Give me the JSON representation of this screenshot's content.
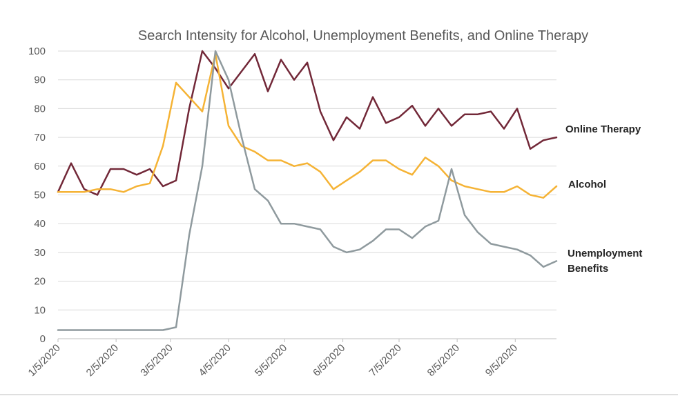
{
  "chart_data": {
    "type": "line",
    "title": "Search Intensity for Alcohol, Unemployment Benefits, and Online Therapy",
    "xlabel": "",
    "ylabel": "",
    "ylim": [
      0,
      100
    ],
    "yticks": [
      0,
      10,
      20,
      30,
      40,
      50,
      60,
      70,
      80,
      90,
      100
    ],
    "x_tick_labels": [
      "1/5/2020",
      "2/5/2020",
      "3/5/2020",
      "4/5/2020",
      "5/5/2020",
      "6/5/2020",
      "7/5/2020",
      "8/5/2020",
      "9/5/2020"
    ],
    "x": [
      "2020-01-05",
      "2020-01-12",
      "2020-01-19",
      "2020-01-26",
      "2020-02-02",
      "2020-02-09",
      "2020-02-16",
      "2020-02-23",
      "2020-03-01",
      "2020-03-08",
      "2020-03-15",
      "2020-03-22",
      "2020-03-29",
      "2020-04-05",
      "2020-04-12",
      "2020-04-19",
      "2020-04-26",
      "2020-05-03",
      "2020-05-10",
      "2020-05-17",
      "2020-05-24",
      "2020-05-31",
      "2020-06-07",
      "2020-06-14",
      "2020-06-21",
      "2020-06-28",
      "2020-07-05",
      "2020-07-12",
      "2020-07-19",
      "2020-07-26",
      "2020-08-02",
      "2020-08-09",
      "2020-08-16",
      "2020-08-23",
      "2020-08-30",
      "2020-09-06",
      "2020-09-13",
      "2020-09-20",
      "2020-09-27"
    ],
    "grid": true,
    "legend": "inline labels at right end of lines",
    "series": [
      {
        "name": "Online Therapy",
        "color": "#722838",
        "values": [
          51,
          61,
          52,
          50,
          59,
          59,
          57,
          59,
          53,
          55,
          80,
          100,
          94,
          87,
          93,
          99,
          86,
          97,
          90,
          96,
          79,
          69,
          77,
          73,
          84,
          75,
          77,
          81,
          74,
          80,
          74,
          78,
          78,
          79,
          73,
          80,
          66,
          69,
          70
        ]
      },
      {
        "name": "Alcohol",
        "color": "#f5b335",
        "values": [
          51,
          51,
          51,
          52,
          52,
          51,
          53,
          54,
          67,
          89,
          84,
          79,
          99,
          74,
          67,
          65,
          62,
          62,
          60,
          61,
          58,
          52,
          55,
          58,
          62,
          62,
          59,
          57,
          63,
          60,
          55,
          53,
          52,
          51,
          51,
          53,
          50,
          49,
          53
        ]
      },
      {
        "name": "Unemployment Benefits",
        "color": "#8f9a9e",
        "values": [
          3,
          3,
          3,
          3,
          3,
          3,
          3,
          3,
          3,
          4,
          36,
          60,
          100,
          90,
          70,
          52,
          48,
          40,
          40,
          39,
          38,
          32,
          30,
          31,
          34,
          38,
          38,
          35,
          39,
          41,
          59,
          43,
          37,
          33,
          32,
          31,
          29,
          25,
          27
        ]
      }
    ],
    "series_labels": [
      {
        "lines": [
          "Online Therapy"
        ]
      },
      {
        "lines": [
          "Alcohol"
        ]
      },
      {
        "lines": [
          "Unemployment",
          "Benefits"
        ]
      }
    ]
  }
}
